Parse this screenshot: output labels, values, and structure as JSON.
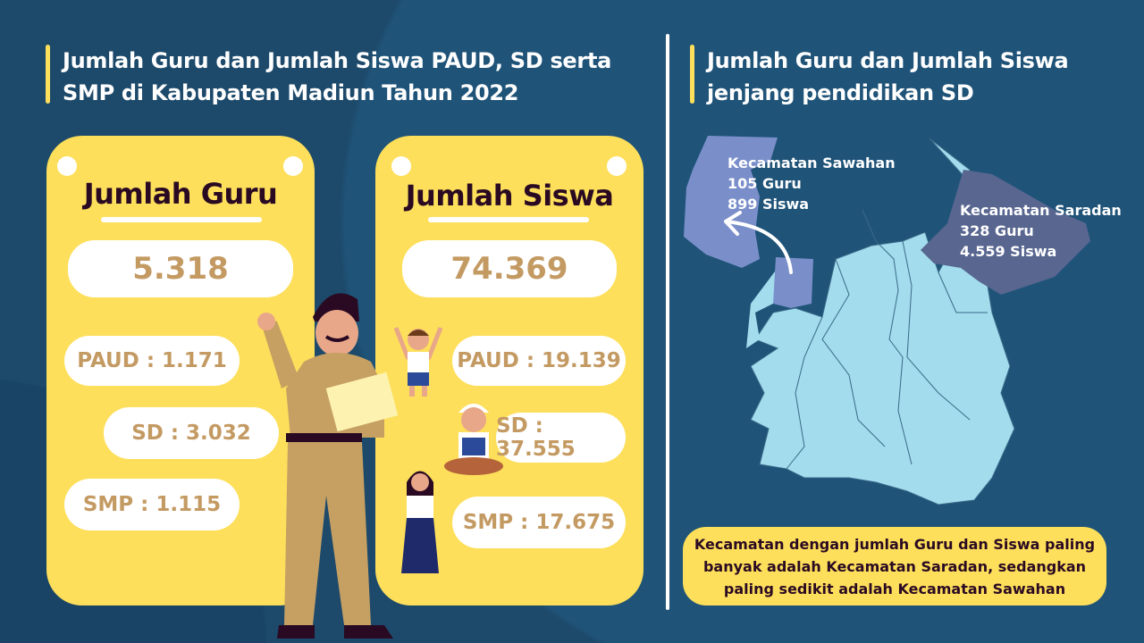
{
  "colors": {
    "background": "#1d4a6b",
    "accent": "#fddf5b",
    "number": "#c49a63",
    "heading": "#2a0a22",
    "map_region": "#a3dcec",
    "sawahan": "#7a8fca",
    "saradan": "#586690"
  },
  "left": {
    "title_line1": "Jumlah Guru dan Jumlah Siswa PAUD, SD serta",
    "title_line2": "SMP di Kabupaten Madiun Tahun 2022",
    "guru": {
      "title": "Jumlah Guru",
      "total": "5.318",
      "paud": "PAUD : 1.171",
      "sd": "SD : 3.032",
      "smp": "SMP : 1.115"
    },
    "siswa": {
      "title": "Jumlah Siswa",
      "total": "74.369",
      "paud": "PAUD : 19.139",
      "sd": "SD : 37.555",
      "smp": "SMP : 17.675"
    }
  },
  "right": {
    "title_line1": "Jumlah Guru dan Jumlah Siswa",
    "title_line2": "jenjang pendidikan SD",
    "sawahan": {
      "name": "Kecamatan Sawahan",
      "guru": "105 Guru",
      "siswa": "899 Siswa"
    },
    "saradan": {
      "name": "Kecamatan Saradan",
      "guru": "328 Guru",
      "siswa": "4.559 Siswa"
    },
    "note_line1": "Kecamatan dengan jumlah Guru dan Siswa paling",
    "note_line2": "banyak adalah Kecamatan Saradan, sedangkan",
    "note_line3": "paling sedikit adalah Kecamatan Sawahan"
  }
}
